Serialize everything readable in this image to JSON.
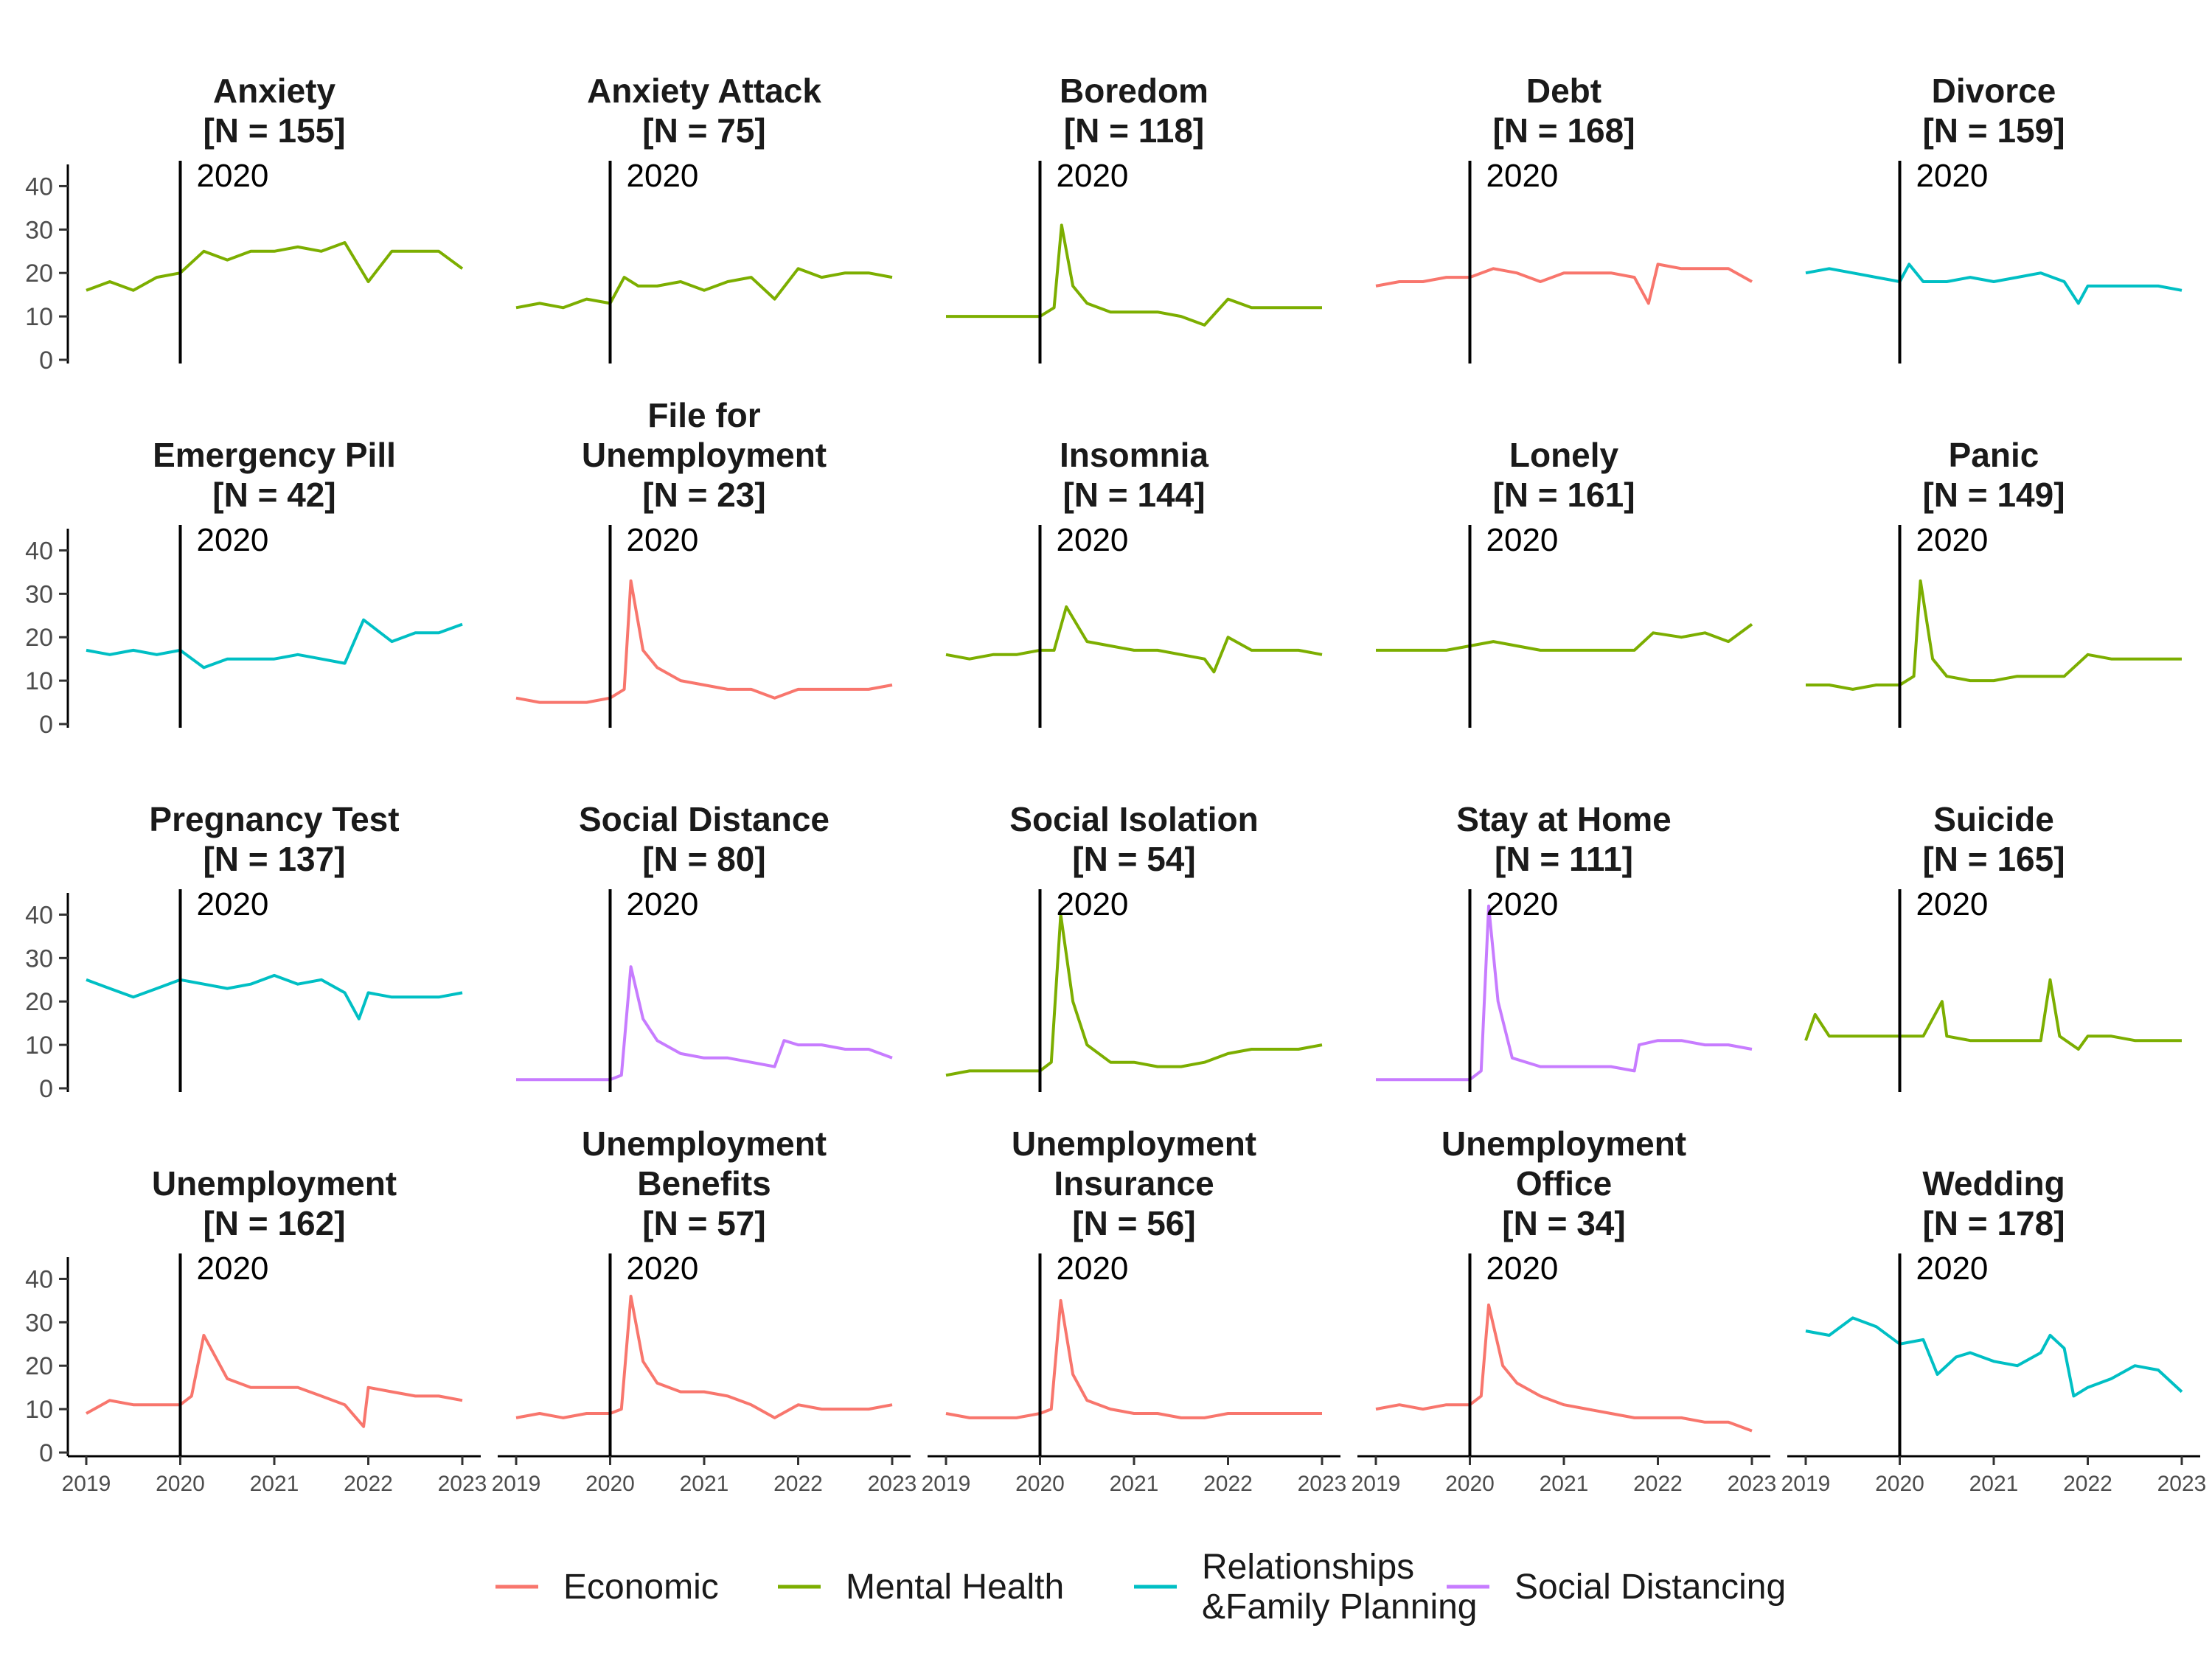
{
  "chart_data": {
    "type": "line",
    "layout": "facet-grid 4x5",
    "x_range": [
      2019,
      2023
    ],
    "x_ticks": [
      "2019",
      "2020",
      "2021",
      "2022",
      "2023"
    ],
    "y_range": [
      0,
      45
    ],
    "y_ticks": [
      "0",
      "10",
      "20",
      "30",
      "40"
    ],
    "reference_line": {
      "x": 2020,
      "label": "2020"
    },
    "grid": false,
    "legend_position": "bottom",
    "legend": [
      {
        "name": "Economic",
        "color": "#F8766D"
      },
      {
        "name": "Mental Health",
        "color": "#7CAE00"
      },
      {
        "name": "Relationships\n&Family Planning",
        "color": "#00BFC4"
      },
      {
        "name": "Social Distancing",
        "color": "#C77CFF"
      }
    ],
    "panels": [
      {
        "title": "Anxiety\n[N = 155]",
        "category": "Mental Health",
        "x": [
          2019.0,
          2019.25,
          2019.5,
          2019.75,
          2020.0,
          2020.25,
          2020.5,
          2020.75,
          2021.0,
          2021.25,
          2021.5,
          2021.75,
          2022.0,
          2022.25,
          2022.5,
          2022.75,
          2023.0
        ],
        "y": [
          16,
          18,
          16,
          19,
          20,
          25,
          23,
          25,
          25,
          26,
          25,
          27,
          18,
          25,
          25,
          25,
          21
        ]
      },
      {
        "title": "Anxiety Attack\n[N = 75]",
        "category": "Mental Health",
        "x": [
          2019.0,
          2019.25,
          2019.5,
          2019.75,
          2020.0,
          2020.15,
          2020.3,
          2020.5,
          2020.75,
          2021.0,
          2021.25,
          2021.5,
          2021.75,
          2022.0,
          2022.25,
          2022.5,
          2022.75,
          2023.0
        ],
        "y": [
          12,
          13,
          12,
          14,
          13,
          19,
          17,
          17,
          18,
          16,
          18,
          19,
          14,
          21,
          19,
          20,
          20,
          19
        ]
      },
      {
        "title": "Boredom\n[N = 118]",
        "category": "Mental Health",
        "x": [
          2019.0,
          2019.25,
          2019.5,
          2019.75,
          2020.0,
          2020.15,
          2020.23,
          2020.35,
          2020.5,
          2020.75,
          2021.0,
          2021.25,
          2021.5,
          2021.75,
          2022.0,
          2022.25,
          2022.5,
          2022.75,
          2023.0
        ],
        "y": [
          10,
          10,
          10,
          10,
          10,
          12,
          31,
          17,
          13,
          11,
          11,
          11,
          10,
          8,
          14,
          12,
          12,
          12,
          12
        ]
      },
      {
        "title": "Debt\n[N = 168]",
        "category": "Economic",
        "x": [
          2019.0,
          2019.25,
          2019.5,
          2019.75,
          2020.0,
          2020.25,
          2020.5,
          2020.75,
          2021.0,
          2021.25,
          2021.5,
          2021.75,
          2021.9,
          2022.0,
          2022.25,
          2022.5,
          2022.75,
          2023.0
        ],
        "y": [
          17,
          18,
          18,
          19,
          19,
          21,
          20,
          18,
          20,
          20,
          20,
          19,
          13,
          22,
          21,
          21,
          21,
          18
        ]
      },
      {
        "title": "Divorce\n[N = 159]",
        "category": "Relationships\n&Family Planning",
        "x": [
          2019.0,
          2019.25,
          2019.5,
          2019.75,
          2020.0,
          2020.1,
          2020.25,
          2020.5,
          2020.75,
          2021.0,
          2021.25,
          2021.5,
          2021.75,
          2021.9,
          2022.0,
          2022.25,
          2022.5,
          2022.75,
          2023.0
        ],
        "y": [
          20,
          21,
          20,
          19,
          18,
          22,
          18,
          18,
          19,
          18,
          19,
          20,
          18,
          13,
          17,
          17,
          17,
          17,
          16
        ]
      },
      {
        "title": "Emergency Pill\n[N = 42]",
        "category": "Relationships\n&Family Planning",
        "x": [
          2019.0,
          2019.25,
          2019.5,
          2019.75,
          2020.0,
          2020.25,
          2020.5,
          2020.75,
          2021.0,
          2021.25,
          2021.5,
          2021.75,
          2021.95,
          2022.25,
          2022.5,
          2022.75,
          2023.0
        ],
        "y": [
          17,
          16,
          17,
          16,
          17,
          13,
          15,
          15,
          15,
          16,
          15,
          14,
          24,
          19,
          21,
          21,
          23
        ]
      },
      {
        "title": "File for\nUnemployment\n[N = 23]",
        "category": "Economic",
        "x": [
          2019.0,
          2019.25,
          2019.5,
          2019.75,
          2020.0,
          2020.15,
          2020.22,
          2020.35,
          2020.5,
          2020.75,
          2021.0,
          2021.25,
          2021.5,
          2021.75,
          2022.0,
          2022.25,
          2022.5,
          2022.75,
          2023.0
        ],
        "y": [
          6,
          5,
          5,
          5,
          6,
          8,
          33,
          17,
          13,
          10,
          9,
          8,
          8,
          6,
          8,
          8,
          8,
          8,
          9
        ]
      },
      {
        "title": "Insomnia\n[N = 144]",
        "category": "Mental Health",
        "x": [
          2019.0,
          2019.25,
          2019.5,
          2019.75,
          2020.0,
          2020.15,
          2020.28,
          2020.5,
          2020.75,
          2021.0,
          2021.25,
          2021.5,
          2021.75,
          2021.85,
          2022.0,
          2022.25,
          2022.5,
          2022.75,
          2023.0
        ],
        "y": [
          16,
          15,
          16,
          16,
          17,
          17,
          27,
          19,
          18,
          17,
          17,
          16,
          15,
          12,
          20,
          17,
          17,
          17,
          16
        ]
      },
      {
        "title": "Lonely\n[N = 161]",
        "category": "Mental Health",
        "x": [
          2019.0,
          2019.25,
          2019.5,
          2019.75,
          2020.0,
          2020.25,
          2020.5,
          2020.75,
          2021.0,
          2021.25,
          2021.5,
          2021.75,
          2021.95,
          2022.25,
          2022.5,
          2022.75,
          2023.0
        ],
        "y": [
          17,
          17,
          17,
          17,
          18,
          19,
          18,
          17,
          17,
          17,
          17,
          17,
          21,
          20,
          21,
          19,
          23
        ]
      },
      {
        "title": "Panic\n[N = 149]",
        "category": "Mental Health",
        "x": [
          2019.0,
          2019.25,
          2019.5,
          2019.75,
          2020.0,
          2020.15,
          2020.22,
          2020.35,
          2020.5,
          2020.75,
          2021.0,
          2021.25,
          2021.5,
          2021.75,
          2022.0,
          2022.25,
          2022.5,
          2022.75,
          2023.0
        ],
        "y": [
          9,
          9,
          8,
          9,
          9,
          11,
          33,
          15,
          11,
          10,
          10,
          11,
          11,
          11,
          16,
          15,
          15,
          15,
          15
        ]
      },
      {
        "title": "Pregnancy Test\n[N = 137]",
        "category": "Relationships\n&Family Planning",
        "x": [
          2019.0,
          2019.25,
          2019.5,
          2019.75,
          2020.0,
          2020.25,
          2020.5,
          2020.75,
          2021.0,
          2021.25,
          2021.5,
          2021.75,
          2021.9,
          2022.0,
          2022.25,
          2022.5,
          2022.75,
          2023.0
        ],
        "y": [
          25,
          23,
          21,
          23,
          25,
          24,
          23,
          24,
          26,
          24,
          25,
          22,
          16,
          22,
          21,
          21,
          21,
          22
        ]
      },
      {
        "title": "Social Distance\n[N = 80]",
        "category": "Social Distancing",
        "x": [
          2019.0,
          2019.25,
          2019.5,
          2019.75,
          2020.0,
          2020.12,
          2020.22,
          2020.35,
          2020.5,
          2020.75,
          2021.0,
          2021.25,
          2021.5,
          2021.75,
          2021.85,
          2022.0,
          2022.25,
          2022.5,
          2022.75,
          2023.0
        ],
        "y": [
          2,
          2,
          2,
          2,
          2,
          3,
          28,
          16,
          11,
          8,
          7,
          7,
          6,
          5,
          11,
          10,
          10,
          9,
          9,
          7
        ]
      },
      {
        "title": "Social Isolation\n[N = 54]",
        "category": "Mental Health",
        "x": [
          2019.0,
          2019.25,
          2019.5,
          2019.75,
          2020.0,
          2020.12,
          2020.22,
          2020.35,
          2020.5,
          2020.75,
          2021.0,
          2021.25,
          2021.5,
          2021.75,
          2022.0,
          2022.25,
          2022.5,
          2022.75,
          2023.0
        ],
        "y": [
          3,
          4,
          4,
          4,
          4,
          6,
          40,
          20,
          10,
          6,
          6,
          5,
          5,
          6,
          8,
          9,
          9,
          9,
          10
        ]
      },
      {
        "title": "Stay at Home\n[N = 111]",
        "category": "Social Distancing",
        "x": [
          2019.0,
          2019.25,
          2019.5,
          2019.75,
          2020.0,
          2020.12,
          2020.2,
          2020.3,
          2020.45,
          2020.75,
          2021.0,
          2021.25,
          2021.5,
          2021.75,
          2021.8,
          2022.0,
          2022.25,
          2022.5,
          2022.75,
          2023.0
        ],
        "y": [
          2,
          2,
          2,
          2,
          2,
          4,
          42,
          20,
          7,
          5,
          5,
          5,
          5,
          4,
          10,
          11,
          11,
          10,
          10,
          9
        ]
      },
      {
        "title": "Suicide\n[N = 165]",
        "category": "Mental Health",
        "x": [
          2019.0,
          2019.1,
          2019.25,
          2019.5,
          2019.75,
          2020.0,
          2020.25,
          2020.45,
          2020.5,
          2020.75,
          2021.0,
          2021.25,
          2021.5,
          2021.6,
          2021.7,
          2021.9,
          2022.0,
          2022.25,
          2022.5,
          2022.75,
          2023.0
        ],
        "y": [
          11,
          17,
          12,
          12,
          12,
          12,
          12,
          20,
          12,
          11,
          11,
          11,
          11,
          25,
          12,
          9,
          12,
          12,
          11,
          11,
          11
        ]
      },
      {
        "title": "Unemployment\n[N = 162]",
        "category": "Economic",
        "x": [
          2019.0,
          2019.25,
          2019.5,
          2019.75,
          2020.0,
          2020.12,
          2020.25,
          2020.5,
          2020.75,
          2021.0,
          2021.25,
          2021.5,
          2021.75,
          2021.95,
          2022.0,
          2022.25,
          2022.5,
          2022.75,
          2023.0
        ],
        "y": [
          9,
          12,
          11,
          11,
          11,
          13,
          27,
          17,
          15,
          15,
          15,
          13,
          11,
          6,
          15,
          14,
          13,
          13,
          12
        ]
      },
      {
        "title": "Unemployment\nBenefits\n[N = 57]",
        "category": "Economic",
        "x": [
          2019.0,
          2019.25,
          2019.5,
          2019.75,
          2020.0,
          2020.12,
          2020.22,
          2020.35,
          2020.5,
          2020.75,
          2021.0,
          2021.25,
          2021.5,
          2021.75,
          2022.0,
          2022.25,
          2022.5,
          2022.75,
          2023.0
        ],
        "y": [
          8,
          9,
          8,
          9,
          9,
          10,
          36,
          21,
          16,
          14,
          14,
          13,
          11,
          8,
          11,
          10,
          10,
          10,
          11
        ]
      },
      {
        "title": "Unemployment\nInsurance\n[N = 56]",
        "category": "Economic",
        "x": [
          2019.0,
          2019.25,
          2019.5,
          2019.75,
          2020.0,
          2020.12,
          2020.22,
          2020.35,
          2020.5,
          2020.75,
          2021.0,
          2021.25,
          2021.5,
          2021.75,
          2022.0,
          2022.25,
          2022.5,
          2022.75,
          2023.0
        ],
        "y": [
          9,
          8,
          8,
          8,
          9,
          10,
          35,
          18,
          12,
          10,
          9,
          9,
          8,
          8,
          9,
          9,
          9,
          9,
          9
        ]
      },
      {
        "title": "Unemployment\nOffice\n[N = 34]",
        "category": "Economic",
        "x": [
          2019.0,
          2019.25,
          2019.5,
          2019.75,
          2020.0,
          2020.12,
          2020.2,
          2020.35,
          2020.5,
          2020.75,
          2021.0,
          2021.25,
          2021.5,
          2021.75,
          2022.0,
          2022.25,
          2022.5,
          2022.75,
          2023.0
        ],
        "y": [
          10,
          11,
          10,
          11,
          11,
          13,
          34,
          20,
          16,
          13,
          11,
          10,
          9,
          8,
          8,
          8,
          7,
          7,
          5
        ]
      },
      {
        "title": "Wedding\n[N = 178]",
        "category": "Relationships\n&Family Planning",
        "x": [
          2019.0,
          2019.25,
          2019.5,
          2019.75,
          2020.0,
          2020.25,
          2020.4,
          2020.6,
          2020.75,
          2021.0,
          2021.25,
          2021.5,
          2021.6,
          2021.75,
          2021.85,
          2022.0,
          2022.25,
          2022.5,
          2022.75,
          2023.0
        ],
        "y": [
          28,
          27,
          31,
          29,
          25,
          26,
          18,
          22,
          23,
          21,
          20,
          23,
          27,
          24,
          13,
          15,
          17,
          20,
          19,
          14
        ]
      }
    ]
  }
}
